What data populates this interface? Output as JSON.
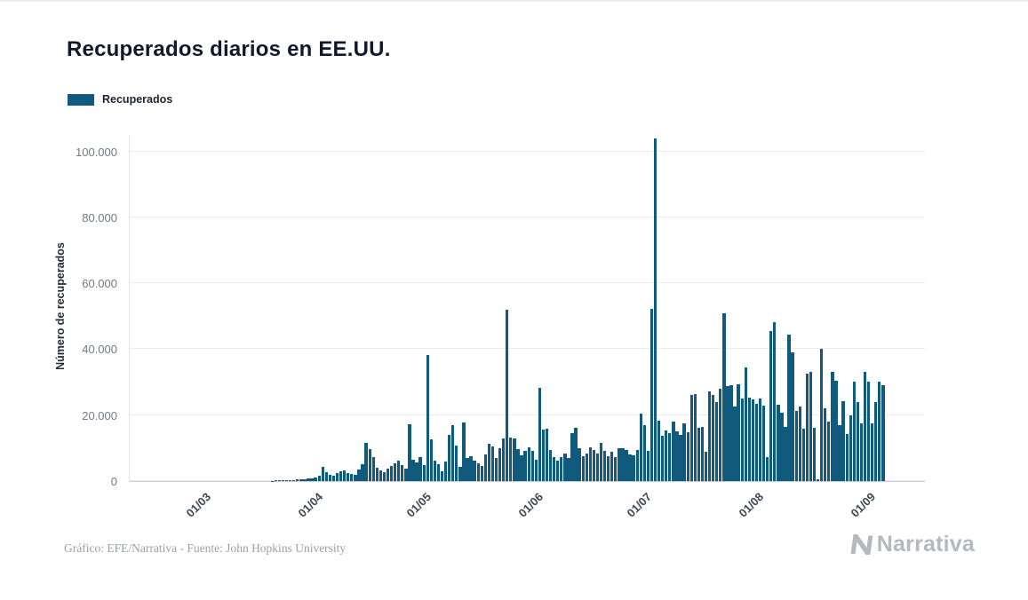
{
  "page": {
    "title": "Recuperados diarios en EE.UU."
  },
  "footer": {
    "credit": "Gráfico: EFE/Narrativa - Fuente: John Hopkins University",
    "logo_text": "Narrativa"
  },
  "colors": {
    "bar": "#0f5a7d",
    "title": "#101a2c",
    "grid": "#ebebeb",
    "y_tick": "#707a85",
    "x_tick": "#3c4654",
    "credit": "#9ba1a6",
    "logo": "#b3b9be"
  },
  "chart_data": {
    "type": "bar",
    "title": "Recuperados diarios en EE.UU.",
    "xlabel": "",
    "ylabel": "Número de recuperados",
    "legend": [
      "Recuperados"
    ],
    "legend_position": "top-left",
    "grid": "horizontal",
    "ylim": [
      0,
      105000
    ],
    "x_domain": [
      "2020-02-10",
      "2020-09-16"
    ],
    "yticks": [
      {
        "value": 0,
        "label": "0"
      },
      {
        "value": 20000,
        "label": "20.000"
      },
      {
        "value": 40000,
        "label": "40.000"
      },
      {
        "value": 60000,
        "label": "60.000"
      },
      {
        "value": 80000,
        "label": "80.000"
      },
      {
        "value": 100000,
        "label": "100.000"
      }
    ],
    "xticks": [
      {
        "date": "2020-03-01",
        "label": "01/03"
      },
      {
        "date": "2020-04-01",
        "label": "01/04"
      },
      {
        "date": "2020-05-01",
        "label": "01/05"
      },
      {
        "date": "2020-06-01",
        "label": "01/06"
      },
      {
        "date": "2020-07-01",
        "label": "01/07"
      },
      {
        "date": "2020-08-01",
        "label": "01/08"
      },
      {
        "date": "2020-09-01",
        "label": "01/09"
      }
    ],
    "series": [
      {
        "name": "Recuperados",
        "frequency": "daily",
        "start_date": "2020-03-20",
        "values": [
          100,
          150,
          200,
          250,
          300,
          350,
          300,
          450,
          550,
          500,
          700,
          900,
          1100,
          1600,
          4300,
          2700,
          1900,
          1500,
          2400,
          2900,
          3300,
          2500,
          2100,
          1800,
          3400,
          5200,
          11500,
          9800,
          7200,
          4100,
          3200,
          2800,
          3900,
          4600,
          5400,
          6200,
          4900,
          3700,
          17200,
          6400,
          5600,
          7400,
          4800,
          38200,
          12600,
          6300,
          5100,
          2900,
          5800,
          14100,
          16900,
          10700,
          4300,
          17700,
          6900,
          7500,
          6300,
          5500,
          4700,
          8000,
          11200,
          10400,
          7000,
          10100,
          12900,
          52100,
          13100,
          12800,
          9600,
          7700,
          9100,
          10300,
          9200,
          6400,
          28300,
          15600,
          16000,
          9300,
          7400,
          6300,
          7200,
          8400,
          7100,
          14600,
          16100,
          10000,
          7500,
          8300,
          10300,
          9400,
          8300,
          11700,
          9200,
          7600,
          9000,
          7300,
          10100,
          10000,
          9300,
          8200,
          7800,
          9500,
          20500,
          17100,
          9200,
          52300,
          104000,
          18300,
          13700,
          15400,
          14600,
          18100,
          15200,
          14000,
          17400,
          14800,
          26000,
          26500,
          16100,
          16300,
          9000,
          27300,
          26200,
          24000,
          28000,
          51000,
          28900,
          29100,
          22500,
          29300,
          25100,
          34600,
          25300,
          24900,
          23300,
          25000,
          22900,
          7200,
          45400,
          48300,
          23100,
          20700,
          16400,
          44300,
          39000,
          21400,
          22500,
          15900,
          32700,
          33100,
          16200,
          500,
          40200,
          22200,
          18000,
          33200,
          30300,
          17000,
          24200,
          14400,
          19800,
          30200,
          24000,
          17500,
          33000,
          30200,
          17600,
          24000,
          30100,
          29200
        ]
      }
    ]
  }
}
